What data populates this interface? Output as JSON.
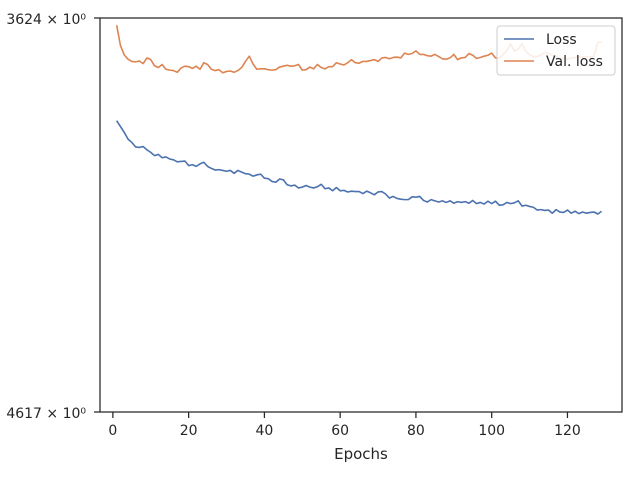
{
  "chart_data": {
    "type": "line",
    "xlabel": "Epochs",
    "ylabel": "",
    "title": "",
    "xlim": [
      -3.4,
      134.4
    ],
    "xticks": [
      0,
      20,
      40,
      60,
      80,
      100,
      120
    ],
    "yscale": "log",
    "ytick_labels": [
      "3624 × 10⁰",
      "4617 × 10⁰"
    ],
    "legend_position": "top-right",
    "grid": false,
    "colors": {
      "Loss": "#4c72b0",
      "Val. loss": "#dd8452"
    },
    "x": [
      1,
      2,
      3,
      4,
      5,
      6,
      7,
      8,
      9,
      10,
      11,
      12,
      13,
      14,
      15,
      16,
      17,
      18,
      19,
      20,
      21,
      22,
      23,
      24,
      25,
      26,
      27,
      28,
      29,
      30,
      31,
      32,
      33,
      34,
      35,
      36,
      37,
      38,
      39,
      40,
      41,
      42,
      43,
      44,
      45,
      46,
      47,
      48,
      49,
      50,
      51,
      52,
      53,
      54,
      55,
      56,
      57,
      58,
      59,
      60,
      61,
      62,
      63,
      64,
      65,
      66,
      67,
      68,
      69,
      70,
      71,
      72,
      73,
      74,
      75,
      76,
      77,
      78,
      79,
      80,
      81,
      82,
      83,
      84,
      85,
      86,
      87,
      88,
      89,
      90,
      91,
      92,
      93,
      94,
      95,
      96,
      97,
      98,
      99,
      100,
      101,
      102,
      103,
      104,
      105,
      106,
      107,
      108,
      109,
      110,
      111,
      112,
      113,
      114,
      115,
      116,
      117,
      118,
      119,
      120,
      121,
      122,
      123,
      124,
      125,
      126,
      127,
      128,
      129
    ],
    "series": [
      {
        "name": "Loss",
        "values": [
          3860,
          3874,
          3888,
          3904,
          3912,
          3923,
          3924,
          3922,
          3930,
          3936,
          3944,
          3941,
          3949,
          3947,
          3952,
          3954,
          3959,
          3958,
          3957,
          3968,
          3966,
          3970,
          3964,
          3960,
          3970,
          3975,
          3979,
          3978,
          3980,
          3982,
          3980,
          3987,
          3980,
          3984,
          3988,
          3989,
          3994,
          3991,
          3989,
          3999,
          4000,
          4007,
          4009,
          4001,
          4003,
          4015,
          4018,
          4016,
          4023,
          4021,
          4017,
          4021,
          4023,
          4020,
          4014,
          4025,
          4023,
          4030,
          4022,
          4030,
          4029,
          4033,
          4031,
          4032,
          4032,
          4037,
          4031,
          4035,
          4040,
          4033,
          4032,
          4038,
          4048,
          4044,
          4049,
          4051,
          4052,
          4052,
          4045,
          4046,
          4044,
          4054,
          4058,
          4052,
          4055,
          4058,
          4055,
          4059,
          4055,
          4061,
          4057,
          4059,
          4057,
          4061,
          4054,
          4062,
          4059,
          4063,
          4056,
          4062,
          4056,
          4066,
          4065,
          4059,
          4062,
          4060,
          4055,
          4068,
          4066,
          4069,
          4071,
          4078,
          4077,
          4079,
          4078,
          4086,
          4077,
          4083,
          4084,
          4078,
          4086,
          4081,
          4087,
          4083,
          4086,
          4084,
          4083,
          4088,
          4081
        ]
      },
      {
        "name": "Val. loss",
        "values": [
          3640,
          3686,
          3707,
          3717,
          3722,
          3723,
          3721,
          3727,
          3714,
          3718,
          3732,
          3736,
          3729,
          3740,
          3742,
          3743,
          3747,
          3737,
          3733,
          3734,
          3738,
          3733,
          3740,
          3725,
          3729,
          3740,
          3743,
          3741,
          3748,
          3745,
          3744,
          3747,
          3743,
          3736,
          3722,
          3710,
          3728,
          3740,
          3739,
          3739,
          3741,
          3742,
          3741,
          3735,
          3733,
          3731,
          3733,
          3732,
          3729,
          3742,
          3741,
          3735,
          3739,
          3729,
          3736,
          3739,
          3734,
          3734,
          3725,
          3728,
          3730,
          3725,
          3718,
          3725,
          3726,
          3722,
          3722,
          3720,
          3718,
          3722,
          3714,
          3713,
          3716,
          3713,
          3712,
          3714,
          3703,
          3706,
          3704,
          3698,
          3706,
          3706,
          3709,
          3710,
          3706,
          3711,
          3716,
          3717,
          3714,
          3706,
          3718,
          3714,
          3713,
          3704,
          3708,
          3715,
          3713,
          3710,
          3708,
          3703,
          3714,
          3715,
          3706,
          3697,
          3682,
          3699,
          3694,
          3682,
          3699,
          3707,
          3711,
          3711,
          3707,
          3702,
          3704,
          3708,
          3711,
          3717,
          3715,
          3717,
          3714,
          3713,
          3712,
          3711,
          3711,
          3712,
          3710,
          3679,
          3678
        ]
      }
    ]
  }
}
